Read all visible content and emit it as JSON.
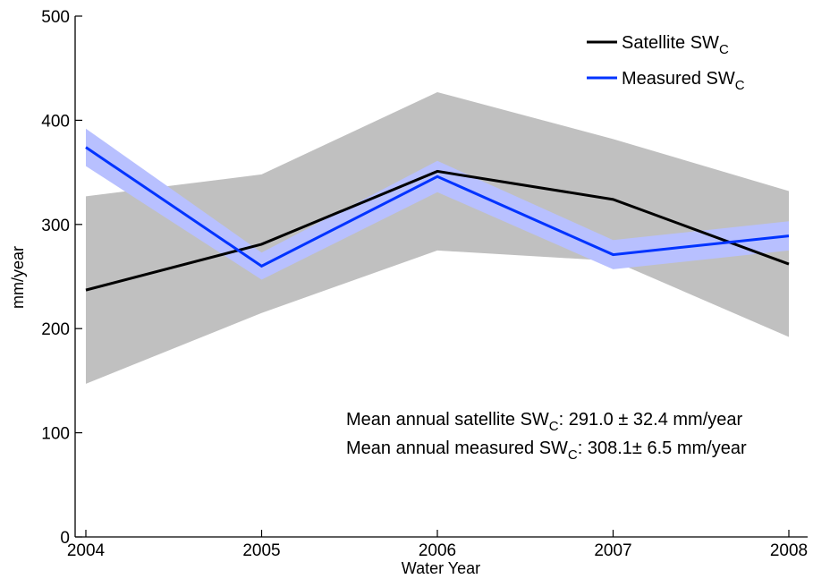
{
  "chart_data": {
    "type": "line",
    "xlabel": "Water Year",
    "ylabel": "mm/year",
    "xlim": [
      2004,
      2008
    ],
    "ylim": [
      0,
      500
    ],
    "x_ticks": [
      "2004",
      "2005",
      "2006",
      "2007",
      "2008"
    ],
    "y_ticks": [
      "0",
      "100",
      "200",
      "300",
      "400",
      "500"
    ],
    "x": [
      2004,
      2005,
      2006,
      2007,
      2008
    ],
    "series": [
      {
        "name": "Satellite SW",
        "name_subscript": "C",
        "color": "#000000",
        "values": [
          237,
          281,
          351,
          324,
          262
        ],
        "band_upper": [
          327,
          348,
          427,
          382,
          332
        ],
        "band_lower": [
          147,
          215,
          275,
          265,
          192
        ],
        "band_color": "#c0c0c0"
      },
      {
        "name": "Measured SW",
        "name_subscript": "C",
        "color": "#0033ff",
        "values": [
          374,
          260,
          346,
          271,
          289
        ],
        "band_upper": [
          392,
          273,
          361,
          285,
          303
        ],
        "band_lower": [
          356,
          247,
          331,
          257,
          275
        ],
        "band_color": "#b8c0ff"
      }
    ],
    "legend_placement": "top-right",
    "grid": false,
    "annotations": [
      {
        "prefix": "Mean annual satellite SW",
        "subscript": "C",
        "suffix": ": 291.0 ± 32.4 mm/year"
      },
      {
        "prefix": "Mean annual measured SW",
        "subscript": "C",
        "suffix": ": 308.1± 6.5 mm/year"
      }
    ]
  }
}
